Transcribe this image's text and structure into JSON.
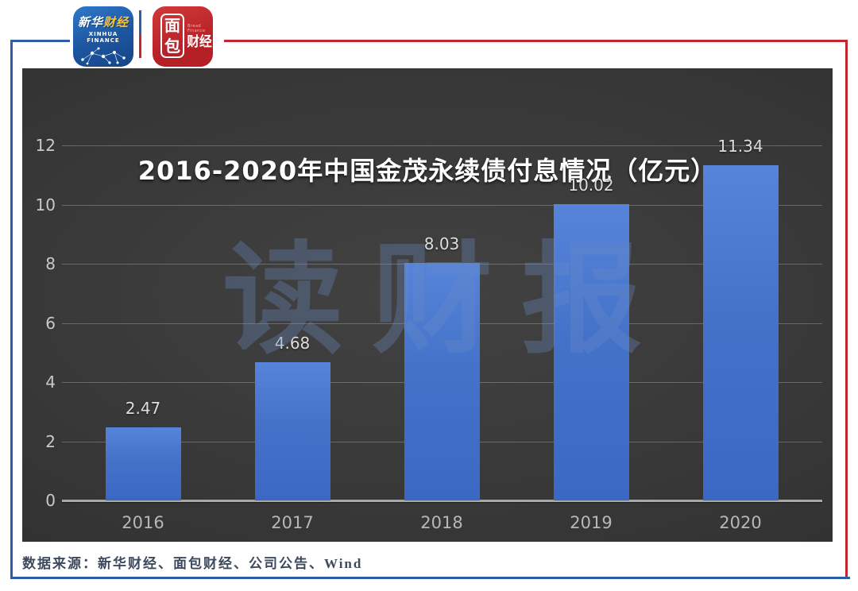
{
  "header": {
    "xinhua_logo": {
      "cn_part1": "新华",
      "cn_part2": "财经",
      "en_text": "XINHUA FINANCE"
    },
    "bread_logo": {
      "cn_char1": "面",
      "cn_char2": "包",
      "cn_right": "财经",
      "en_text": "Bread Finance"
    }
  },
  "chart_data": {
    "type": "bar",
    "title": "2016-2020年中国金茂永续债付息情况（亿元）",
    "categories": [
      "2016",
      "2017",
      "2018",
      "2019",
      "2020"
    ],
    "values": [
      2.47,
      4.68,
      8.03,
      10.02,
      11.34
    ],
    "value_labels": [
      "2.47",
      "4.68",
      "8.03",
      "10.02",
      "11.34"
    ],
    "y_ticks": [
      0,
      2,
      4,
      6,
      8,
      10,
      12
    ],
    "ylim": [
      0,
      12
    ],
    "xlabel": "",
    "ylabel": "",
    "grid": true,
    "legend": "none",
    "watermark": "读财报",
    "bar_color": "#4472c4",
    "background_color": "#343434"
  },
  "footer": {
    "source": "数据来源：新华财经、面包财经、公司公告、Wind"
  },
  "colors": {
    "frame_blue": "#2e5fa6",
    "frame_red": "#c1272d",
    "title_text": "#ffffff",
    "tick_text": "#c9c9c9",
    "watermark_blue": "#6a8cc4"
  }
}
